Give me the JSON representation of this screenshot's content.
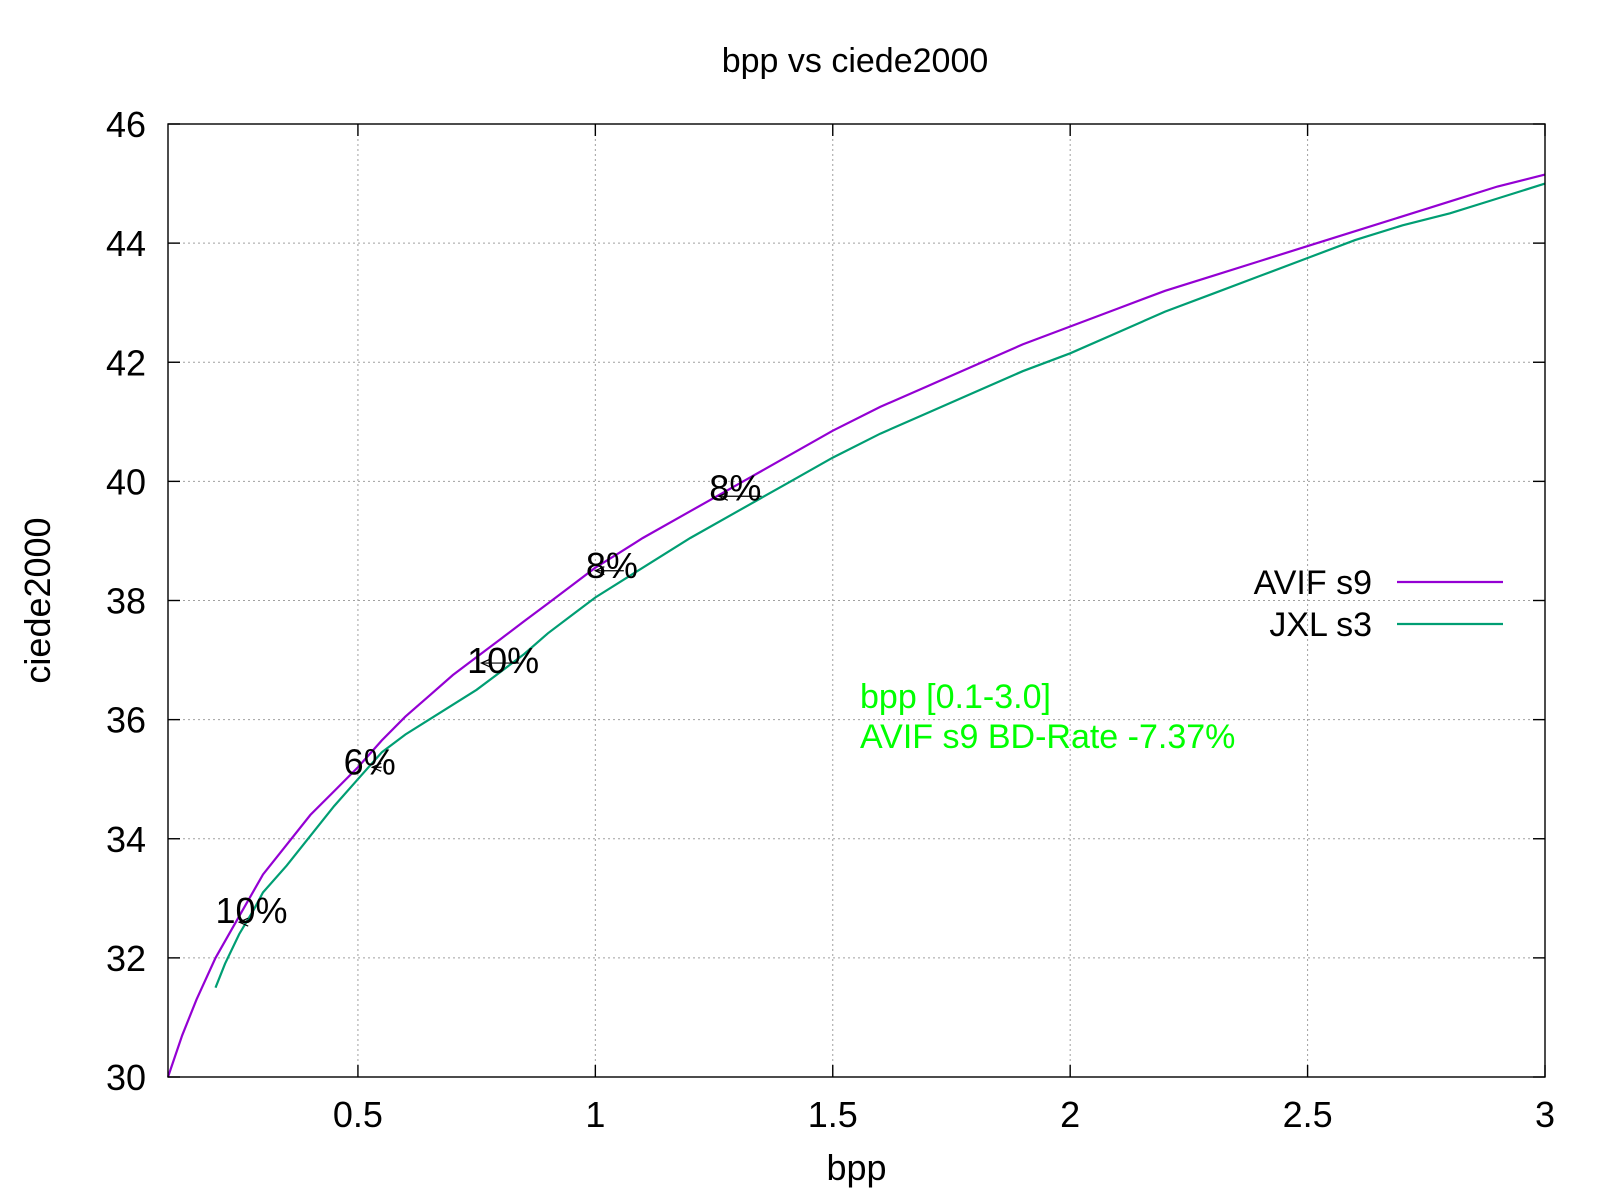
{
  "chart_data": {
    "type": "line",
    "title": "bpp vs ciede2000",
    "xlabel": "bpp",
    "ylabel": "ciede2000",
    "xlim": [
      0.1,
      3.0
    ],
    "ylim": [
      30,
      46
    ],
    "xticks": [
      0.5,
      1,
      1.5,
      2,
      2.5,
      3
    ],
    "xtick_labels": [
      "0.5",
      "1",
      "1.5",
      "2",
      "2.5",
      "3"
    ],
    "yticks": [
      30,
      32,
      34,
      36,
      38,
      40,
      42,
      44,
      46
    ],
    "ytick_labels": [
      "30",
      "32",
      "34",
      "36",
      "38",
      "40",
      "42",
      "44",
      "46"
    ],
    "grid": true,
    "legend_position": "right",
    "series": [
      {
        "name": "AVIF s9",
        "color": "#9400d3",
        "points": [
          [
            0.1,
            30.0
          ],
          [
            0.13,
            30.7
          ],
          [
            0.16,
            31.3
          ],
          [
            0.2,
            32.0
          ],
          [
            0.25,
            32.7
          ],
          [
            0.3,
            33.4
          ],
          [
            0.35,
            33.9
          ],
          [
            0.4,
            34.4
          ],
          [
            0.45,
            34.8
          ],
          [
            0.5,
            35.2
          ],
          [
            0.55,
            35.65
          ],
          [
            0.6,
            36.05
          ],
          [
            0.65,
            36.4
          ],
          [
            0.7,
            36.75
          ],
          [
            0.75,
            37.05
          ],
          [
            0.8,
            37.35
          ],
          [
            0.85,
            37.65
          ],
          [
            0.9,
            37.95
          ],
          [
            0.95,
            38.25
          ],
          [
            1.0,
            38.55
          ],
          [
            1.05,
            38.8
          ],
          [
            1.1,
            39.05
          ],
          [
            1.2,
            39.5
          ],
          [
            1.3,
            39.95
          ],
          [
            1.4,
            40.4
          ],
          [
            1.5,
            40.85
          ],
          [
            1.6,
            41.25
          ],
          [
            1.7,
            41.6
          ],
          [
            1.8,
            41.95
          ],
          [
            1.9,
            42.3
          ],
          [
            2.0,
            42.6
          ],
          [
            2.1,
            42.9
          ],
          [
            2.2,
            43.2
          ],
          [
            2.3,
            43.45
          ],
          [
            2.4,
            43.7
          ],
          [
            2.5,
            43.95
          ],
          [
            2.6,
            44.2
          ],
          [
            2.7,
            44.45
          ],
          [
            2.8,
            44.7
          ],
          [
            2.9,
            44.95
          ],
          [
            3.0,
            45.15
          ]
        ]
      },
      {
        "name": "JXL s3",
        "color": "#009e73",
        "points": [
          [
            0.2,
            31.5
          ],
          [
            0.22,
            31.9
          ],
          [
            0.25,
            32.4
          ],
          [
            0.28,
            32.8
          ],
          [
            0.3,
            33.1
          ],
          [
            0.35,
            33.55
          ],
          [
            0.4,
            34.05
          ],
          [
            0.45,
            34.55
          ],
          [
            0.5,
            35.0
          ],
          [
            0.55,
            35.45
          ],
          [
            0.6,
            35.75
          ],
          [
            0.65,
            36.0
          ],
          [
            0.7,
            36.25
          ],
          [
            0.75,
            36.5
          ],
          [
            0.8,
            36.8
          ],
          [
            0.85,
            37.1
          ],
          [
            0.9,
            37.45
          ],
          [
            0.95,
            37.75
          ],
          [
            1.0,
            38.05
          ],
          [
            1.05,
            38.3
          ],
          [
            1.1,
            38.55
          ],
          [
            1.2,
            39.05
          ],
          [
            1.3,
            39.5
          ],
          [
            1.4,
            39.95
          ],
          [
            1.5,
            40.4
          ],
          [
            1.6,
            40.8
          ],
          [
            1.7,
            41.15
          ],
          [
            1.8,
            41.5
          ],
          [
            1.9,
            41.85
          ],
          [
            2.0,
            42.15
          ],
          [
            2.1,
            42.5
          ],
          [
            2.2,
            42.85
          ],
          [
            2.3,
            43.15
          ],
          [
            2.4,
            43.45
          ],
          [
            2.5,
            43.75
          ],
          [
            2.6,
            44.05
          ],
          [
            2.7,
            44.3
          ],
          [
            2.8,
            44.5
          ],
          [
            2.9,
            44.75
          ],
          [
            3.0,
            45.0
          ]
        ]
      }
    ],
    "annotations": [
      {
        "text": "10%",
        "x": 0.2,
        "y": 32.8,
        "arrow_from": [
          0.27,
          32.6
        ],
        "arrow_to": [
          0.25,
          32.6
        ]
      },
      {
        "text": "6%",
        "x": 0.47,
        "y": 35.3,
        "arrow_from": [
          0.55,
          35.2
        ],
        "arrow_to": [
          0.53,
          35.2
        ]
      },
      {
        "text": "10%",
        "x": 0.73,
        "y": 37.0,
        "arrow_from": [
          0.84,
          36.95
        ],
        "arrow_to": [
          0.76,
          36.95
        ]
      },
      {
        "text": "8%",
        "x": 0.98,
        "y": 38.6,
        "arrow_from": [
          1.06,
          38.5
        ],
        "arrow_to": [
          1.0,
          38.5
        ]
      },
      {
        "text": "8%",
        "x": 1.24,
        "y": 39.9,
        "arrow_from": [
          1.35,
          39.75
        ],
        "arrow_to": [
          1.26,
          39.75
        ]
      }
    ],
    "notes": [
      {
        "text": "bpp [0.1-3.0]",
        "color": "#00ff00"
      },
      {
        "text": "AVIF s9 BD-Rate -7.37%",
        "color": "#00ff00"
      }
    ]
  }
}
